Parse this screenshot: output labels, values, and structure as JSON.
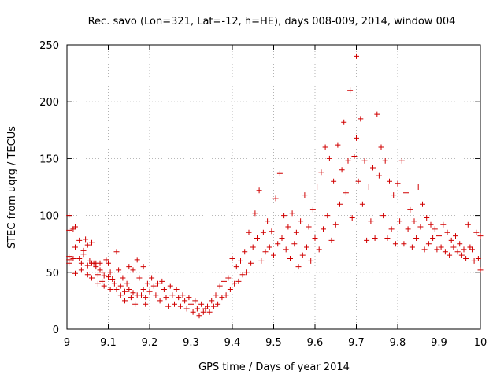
{
  "chart_data": {
    "type": "scatter",
    "title": "Rec. savo (Lon=321, Lat=-12, h=HE), days 008-009, 2014, window 004",
    "xlabel": "GPS time / Days of year 2014",
    "ylabel": "STEC from uqrg / TECUs",
    "xlim": [
      9.0,
      10.0
    ],
    "ylim": [
      0,
      250
    ],
    "xticks": [
      9.0,
      9.1,
      9.2,
      9.3,
      9.4,
      9.5,
      9.6,
      9.7,
      9.8,
      9.9,
      10.0
    ],
    "xtick_labels": [
      "9",
      "9.1",
      "9.2",
      "9.3",
      "9.4",
      "9.5",
      "9.6",
      "9.7",
      "9.8",
      "9.9",
      "10"
    ],
    "yticks": [
      0,
      50,
      100,
      150,
      200,
      250
    ],
    "ytick_labels": [
      "0",
      "50",
      "100",
      "150",
      "200",
      "250"
    ],
    "grid": true,
    "marker": "plus",
    "marker_color": "#d00000",
    "series": [
      {
        "name": "STEC",
        "points": [
          [
            9.005,
            100
          ],
          [
            9.005,
            87
          ],
          [
            9.005,
            64
          ],
          [
            9.005,
            61
          ],
          [
            9.005,
            58
          ],
          [
            9.015,
            88
          ],
          [
            9.015,
            62
          ],
          [
            9.02,
            90
          ],
          [
            9.02,
            72
          ],
          [
            9.02,
            49
          ],
          [
            9.03,
            78
          ],
          [
            9.03,
            62
          ],
          [
            9.035,
            58
          ],
          [
            9.035,
            52
          ],
          [
            9.04,
            69
          ],
          [
            9.04,
            66
          ],
          [
            9.045,
            79
          ],
          [
            9.05,
            74
          ],
          [
            9.05,
            56
          ],
          [
            9.05,
            48
          ],
          [
            9.055,
            60
          ],
          [
            9.06,
            76
          ],
          [
            9.06,
            58
          ],
          [
            9.06,
            45
          ],
          [
            9.065,
            58
          ],
          [
            9.07,
            58
          ],
          [
            9.07,
            55
          ],
          [
            9.075,
            48
          ],
          [
            9.075,
            40
          ],
          [
            9.08,
            58
          ],
          [
            9.08,
            52
          ],
          [
            9.085,
            50
          ],
          [
            9.085,
            42
          ],
          [
            9.09,
            47
          ],
          [
            9.09,
            38
          ],
          [
            9.095,
            61
          ],
          [
            9.1,
            58
          ],
          [
            9.1,
            46
          ],
          [
            9.105,
            50
          ],
          [
            9.105,
            35
          ],
          [
            9.11,
            44
          ],
          [
            9.115,
            40
          ],
          [
            9.12,
            68
          ],
          [
            9.12,
            35
          ],
          [
            9.125,
            52
          ],
          [
            9.13,
            38
          ],
          [
            9.13,
            30
          ],
          [
            9.135,
            45
          ],
          [
            9.14,
            33
          ],
          [
            9.14,
            25
          ],
          [
            9.145,
            40
          ],
          [
            9.15,
            55
          ],
          [
            9.15,
            35
          ],
          [
            9.155,
            28
          ],
          [
            9.16,
            52
          ],
          [
            9.16,
            32
          ],
          [
            9.165,
            22
          ],
          [
            9.17,
            61
          ],
          [
            9.17,
            30
          ],
          [
            9.175,
            45
          ],
          [
            9.18,
            30
          ],
          [
            9.185,
            55
          ],
          [
            9.185,
            35
          ],
          [
            9.19,
            28
          ],
          [
            9.19,
            22
          ],
          [
            9.195,
            40
          ],
          [
            9.2,
            33
          ],
          [
            9.205,
            45
          ],
          [
            9.21,
            38
          ],
          [
            9.215,
            30
          ],
          [
            9.22,
            40
          ],
          [
            9.225,
            25
          ],
          [
            9.23,
            42
          ],
          [
            9.235,
            35
          ],
          [
            9.24,
            28
          ],
          [
            9.245,
            20
          ],
          [
            9.25,
            38
          ],
          [
            9.255,
            30
          ],
          [
            9.26,
            22
          ],
          [
            9.265,
            35
          ],
          [
            9.27,
            28
          ],
          [
            9.275,
            20
          ],
          [
            9.28,
            30
          ],
          [
            9.285,
            25
          ],
          [
            9.29,
            18
          ],
          [
            9.295,
            28
          ],
          [
            9.3,
            22
          ],
          [
            9.305,
            15
          ],
          [
            9.31,
            25
          ],
          [
            9.315,
            18
          ],
          [
            9.32,
            12
          ],
          [
            9.325,
            22
          ],
          [
            9.33,
            15
          ],
          [
            9.335,
            18
          ],
          [
            9.34,
            20
          ],
          [
            9.345,
            15
          ],
          [
            9.35,
            25
          ],
          [
            9.355,
            20
          ],
          [
            9.36,
            30
          ],
          [
            9.365,
            22
          ],
          [
            9.37,
            38
          ],
          [
            9.375,
            28
          ],
          [
            9.38,
            42
          ],
          [
            9.385,
            30
          ],
          [
            9.39,
            45
          ],
          [
            9.395,
            35
          ],
          [
            9.4,
            62
          ],
          [
            9.405,
            40
          ],
          [
            9.41,
            55
          ],
          [
            9.415,
            42
          ],
          [
            9.42,
            60
          ],
          [
            9.425,
            48
          ],
          [
            9.43,
            68
          ],
          [
            9.435,
            50
          ],
          [
            9.44,
            85
          ],
          [
            9.445,
            58
          ],
          [
            9.45,
            72
          ],
          [
            9.455,
            102
          ],
          [
            9.46,
            80
          ],
          [
            9.465,
            122
          ],
          [
            9.47,
            60
          ],
          [
            9.475,
            85
          ],
          [
            9.48,
            68
          ],
          [
            9.485,
            95
          ],
          [
            9.49,
            72
          ],
          [
            9.495,
            86
          ],
          [
            9.5,
            65
          ],
          [
            9.505,
            115
          ],
          [
            9.51,
            75
          ],
          [
            9.515,
            137
          ],
          [
            9.52,
            80
          ],
          [
            9.525,
            100
          ],
          [
            9.53,
            70
          ],
          [
            9.535,
            90
          ],
          [
            9.54,
            62
          ],
          [
            9.545,
            102
          ],
          [
            9.55,
            75
          ],
          [
            9.555,
            85
          ],
          [
            9.56,
            55
          ],
          [
            9.565,
            95
          ],
          [
            9.57,
            65
          ],
          [
            9.575,
            118
          ],
          [
            9.58,
            72
          ],
          [
            9.585,
            90
          ],
          [
            9.59,
            60
          ],
          [
            9.595,
            105
          ],
          [
            9.6,
            80
          ],
          [
            9.605,
            125
          ],
          [
            9.61,
            70
          ],
          [
            9.615,
            138
          ],
          [
            9.62,
            88
          ],
          [
            9.625,
            160
          ],
          [
            9.63,
            100
          ],
          [
            9.635,
            150
          ],
          [
            9.64,
            78
          ],
          [
            9.645,
            130
          ],
          [
            9.65,
            92
          ],
          [
            9.655,
            162
          ],
          [
            9.66,
            110
          ],
          [
            9.665,
            140
          ],
          [
            9.67,
            182
          ],
          [
            9.675,
            120
          ],
          [
            9.68,
            148
          ],
          [
            9.685,
            210
          ],
          [
            9.69,
            98
          ],
          [
            9.695,
            152
          ],
          [
            9.7,
            240
          ],
          [
            9.7,
            168
          ],
          [
            9.705,
            130
          ],
          [
            9.71,
            185
          ],
          [
            9.715,
            110
          ],
          [
            9.72,
            148
          ],
          [
            9.725,
            78
          ],
          [
            9.73,
            125
          ],
          [
            9.735,
            95
          ],
          [
            9.74,
            142
          ],
          [
            9.745,
            80
          ],
          [
            9.75,
            189
          ],
          [
            9.755,
            135
          ],
          [
            9.76,
            160
          ],
          [
            9.765,
            100
          ],
          [
            9.77,
            148
          ],
          [
            9.775,
            80
          ],
          [
            9.78,
            130
          ],
          [
            9.785,
            88
          ],
          [
            9.79,
            118
          ],
          [
            9.795,
            75
          ],
          [
            9.8,
            128
          ],
          [
            9.805,
            95
          ],
          [
            9.81,
            148
          ],
          [
            9.815,
            75
          ],
          [
            9.82,
            120
          ],
          [
            9.825,
            88
          ],
          [
            9.83,
            105
          ],
          [
            9.835,
            72
          ],
          [
            9.84,
            95
          ],
          [
            9.845,
            80
          ],
          [
            9.85,
            125
          ],
          [
            9.855,
            90
          ],
          [
            9.86,
            110
          ],
          [
            9.865,
            70
          ],
          [
            9.87,
            98
          ],
          [
            9.875,
            75
          ],
          [
            9.88,
            92
          ],
          [
            9.885,
            80
          ],
          [
            9.89,
            88
          ],
          [
            9.895,
            70
          ],
          [
            9.9,
            82
          ],
          [
            9.905,
            72
          ],
          [
            9.91,
            92
          ],
          [
            9.915,
            68
          ],
          [
            9.92,
            85
          ],
          [
            9.925,
            65
          ],
          [
            9.93,
            78
          ],
          [
            9.935,
            72
          ],
          [
            9.94,
            82
          ],
          [
            9.945,
            68
          ],
          [
            9.95,
            75
          ],
          [
            9.955,
            65
          ],
          [
            9.96,
            70
          ],
          [
            9.965,
            62
          ],
          [
            9.97,
            92
          ],
          [
            9.975,
            72
          ],
          [
            9.98,
            70
          ],
          [
            9.985,
            60
          ],
          [
            9.99,
            85
          ],
          [
            9.995,
            62
          ],
          [
            10.0,
            82
          ],
          [
            10.0,
            52
          ]
        ]
      }
    ]
  }
}
